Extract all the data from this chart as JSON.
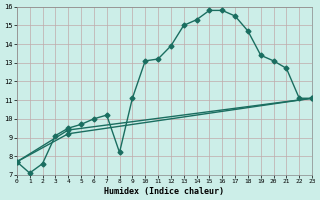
{
  "xlabel": "Humidex (Indice chaleur)",
  "bg_color": "#cceee8",
  "grid_color": "#c0aaaa",
  "line_color": "#1a6e60",
  "xlim": [
    0,
    23
  ],
  "ylim": [
    7,
    16
  ],
  "xticks": [
    0,
    1,
    2,
    3,
    4,
    5,
    6,
    7,
    8,
    9,
    10,
    11,
    12,
    13,
    14,
    15,
    16,
    17,
    18,
    19,
    20,
    21,
    22,
    23
  ],
  "yticks": [
    7,
    8,
    9,
    10,
    11,
    12,
    13,
    14,
    15,
    16
  ],
  "main_x": [
    0,
    1,
    2,
    3,
    4,
    5,
    6,
    7,
    8,
    9,
    10,
    11,
    12,
    13,
    14,
    15,
    16,
    17,
    18,
    19,
    20,
    21,
    22,
    23
  ],
  "main_y": [
    7.7,
    7.1,
    7.6,
    9.1,
    9.5,
    9.7,
    10.0,
    10.2,
    8.2,
    11.1,
    13.1,
    13.2,
    13.9,
    15.0,
    15.3,
    15.8,
    15.8,
    15.5,
    14.7,
    13.4,
    13.1,
    12.7,
    11.1,
    11.1
  ],
  "line2_x": [
    0,
    4,
    23
  ],
  "line2_y": [
    7.7,
    9.4,
    11.1
  ],
  "line3_x": [
    0,
    4,
    23
  ],
  "line3_y": [
    7.7,
    9.2,
    11.1
  ],
  "marker": "D",
  "markersize": 2.5,
  "linewidth": 1.0
}
